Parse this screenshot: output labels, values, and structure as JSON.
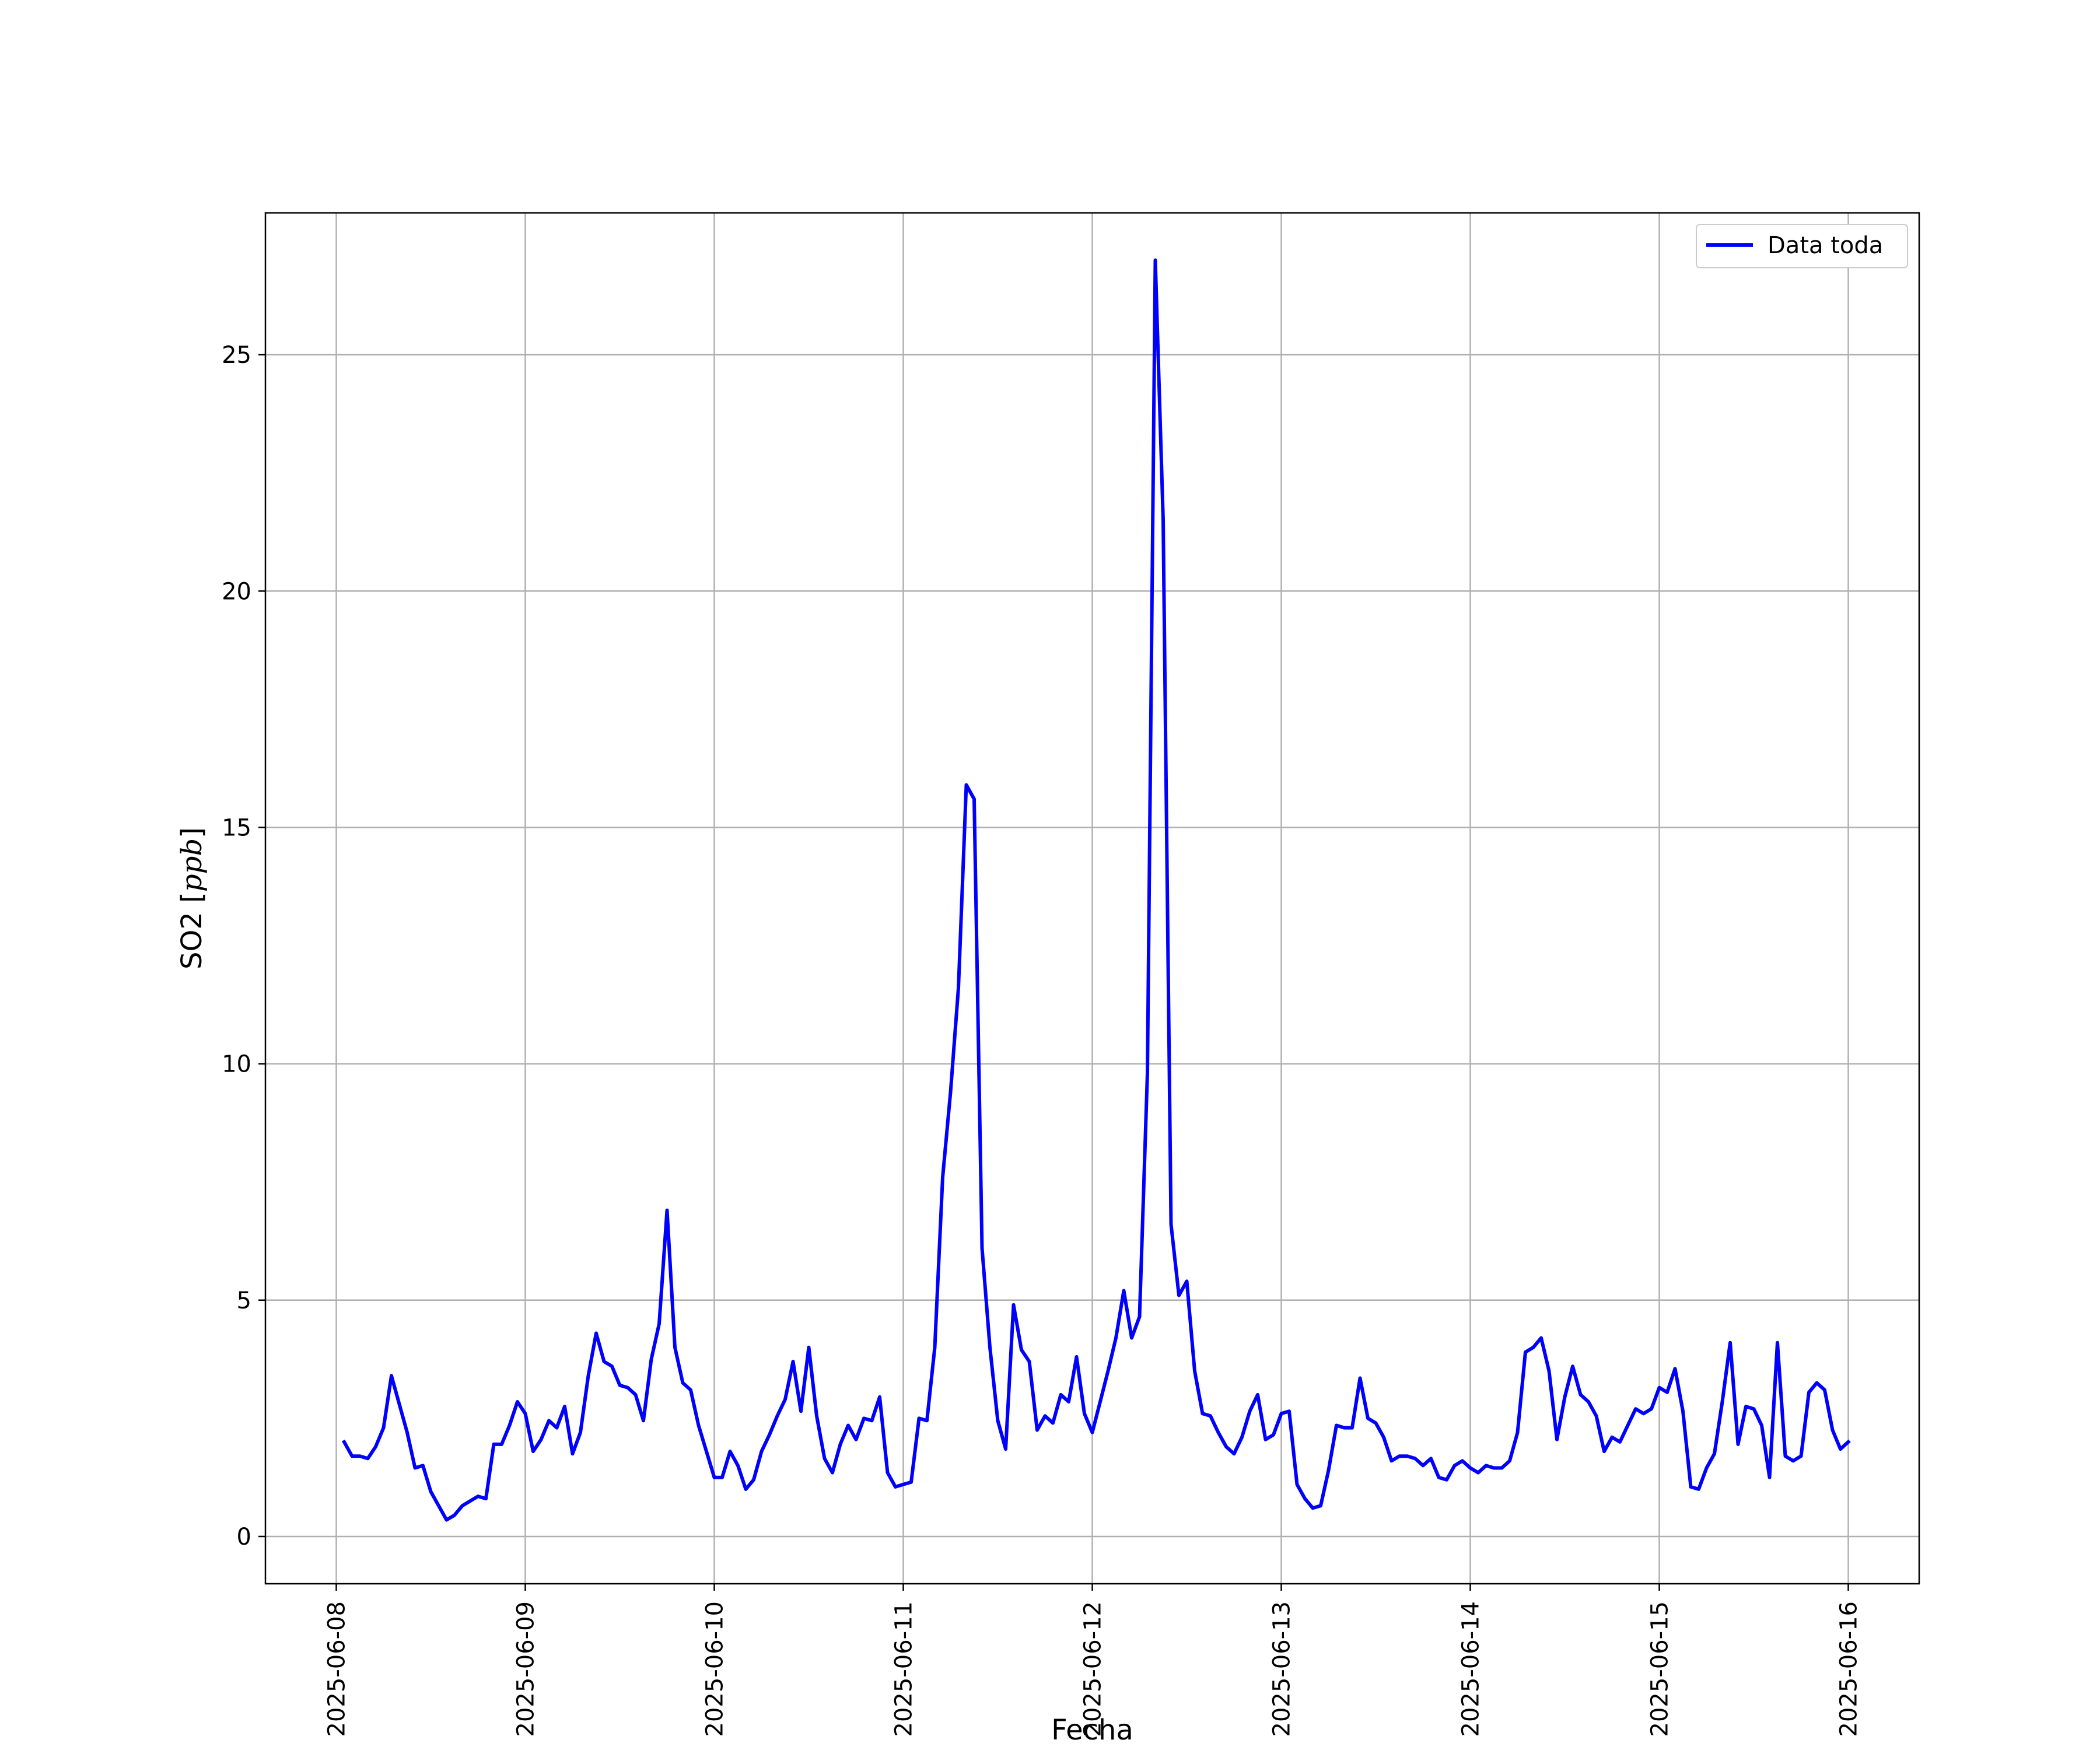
{
  "chart_data": {
    "type": "line",
    "xlabel": "Fecha",
    "ylabel_text": "SO2 [",
    "ylabel_unit": "ppb",
    "ylabel_close": "]",
    "xlim": [
      "2025-06-07 15:00",
      "2025-06-16 09:00"
    ],
    "ylim": [
      -1.0,
      28.0
    ],
    "grid": true,
    "legend_position": "top-right",
    "x_ticks": [
      "2025-06-08",
      "2025-06-09",
      "2025-06-10",
      "2025-06-11",
      "2025-06-12",
      "2025-06-13",
      "2025-06-14",
      "2025-06-15",
      "2025-06-16"
    ],
    "y_ticks": [
      0,
      5,
      10,
      15,
      20,
      25
    ],
    "series": [
      {
        "name": "Data toda",
        "color": "#0000ff",
        "x_start": "2025-06-08 01:00",
        "x_step_hours": 1,
        "values": [
          2.0,
          1.7,
          1.7,
          1.65,
          1.9,
          2.3,
          3.4,
          2.8,
          2.2,
          1.45,
          1.5,
          0.95,
          0.65,
          0.35,
          0.45,
          0.65,
          0.75,
          0.85,
          0.8,
          1.95,
          1.95,
          2.35,
          2.85,
          2.6,
          1.8,
          2.05,
          2.45,
          2.3,
          2.75,
          1.75,
          2.2,
          3.4,
          4.3,
          3.7,
          3.6,
          3.2,
          3.15,
          3.0,
          2.45,
          3.75,
          4.5,
          6.9,
          4.0,
          3.25,
          3.1,
          2.35,
          1.8,
          1.25,
          1.25,
          1.8,
          1.5,
          1.0,
          1.2,
          1.8,
          2.15,
          2.55,
          2.9,
          3.7,
          2.65,
          4.0,
          2.55,
          1.65,
          1.35,
          1.95,
          2.35,
          2.05,
          2.5,
          2.45,
          2.95,
          1.35,
          1.05,
          1.1,
          1.15,
          2.5,
          2.45,
          4.0,
          7.6,
          9.4,
          11.6,
          15.9,
          15.6,
          6.1,
          4.0,
          2.45,
          1.85,
          4.9,
          3.95,
          3.7,
          2.25,
          2.55,
          2.4,
          3.0,
          2.85,
          3.8,
          2.6,
          2.2,
          2.85,
          3.5,
          4.2,
          5.2,
          4.2,
          4.65,
          9.8,
          27.0,
          21.5,
          6.6,
          5.1,
          5.4,
          3.5,
          2.6,
          2.55,
          2.2,
          1.9,
          1.75,
          2.1,
          2.65,
          3.0,
          2.05,
          2.15,
          2.6,
          2.65,
          1.1,
          0.8,
          0.6,
          0.65,
          1.4,
          2.35,
          2.3,
          2.3,
          3.35,
          2.5,
          2.4,
          2.1,
          1.6,
          1.7,
          1.7,
          1.65,
          1.5,
          1.65,
          1.25,
          1.2,
          1.5,
          1.6,
          1.45,
          1.35,
          1.5,
          1.45,
          1.45,
          1.6,
          2.2,
          3.9,
          4.0,
          4.2,
          3.5,
          2.05,
          2.95,
          3.6,
          3.0,
          2.85,
          2.55,
          1.8,
          2.1,
          2.0,
          2.35,
          2.7,
          2.6,
          2.7,
          3.15,
          3.05,
          3.55,
          2.65,
          1.05,
          1.0,
          1.45,
          1.75,
          2.85,
          4.1,
          1.95,
          2.75,
          2.7,
          2.35,
          1.25,
          4.1,
          1.7,
          1.6,
          1.7,
          3.05,
          3.25,
          3.1,
          2.25,
          1.85,
          2.0
        ]
      }
    ]
  }
}
